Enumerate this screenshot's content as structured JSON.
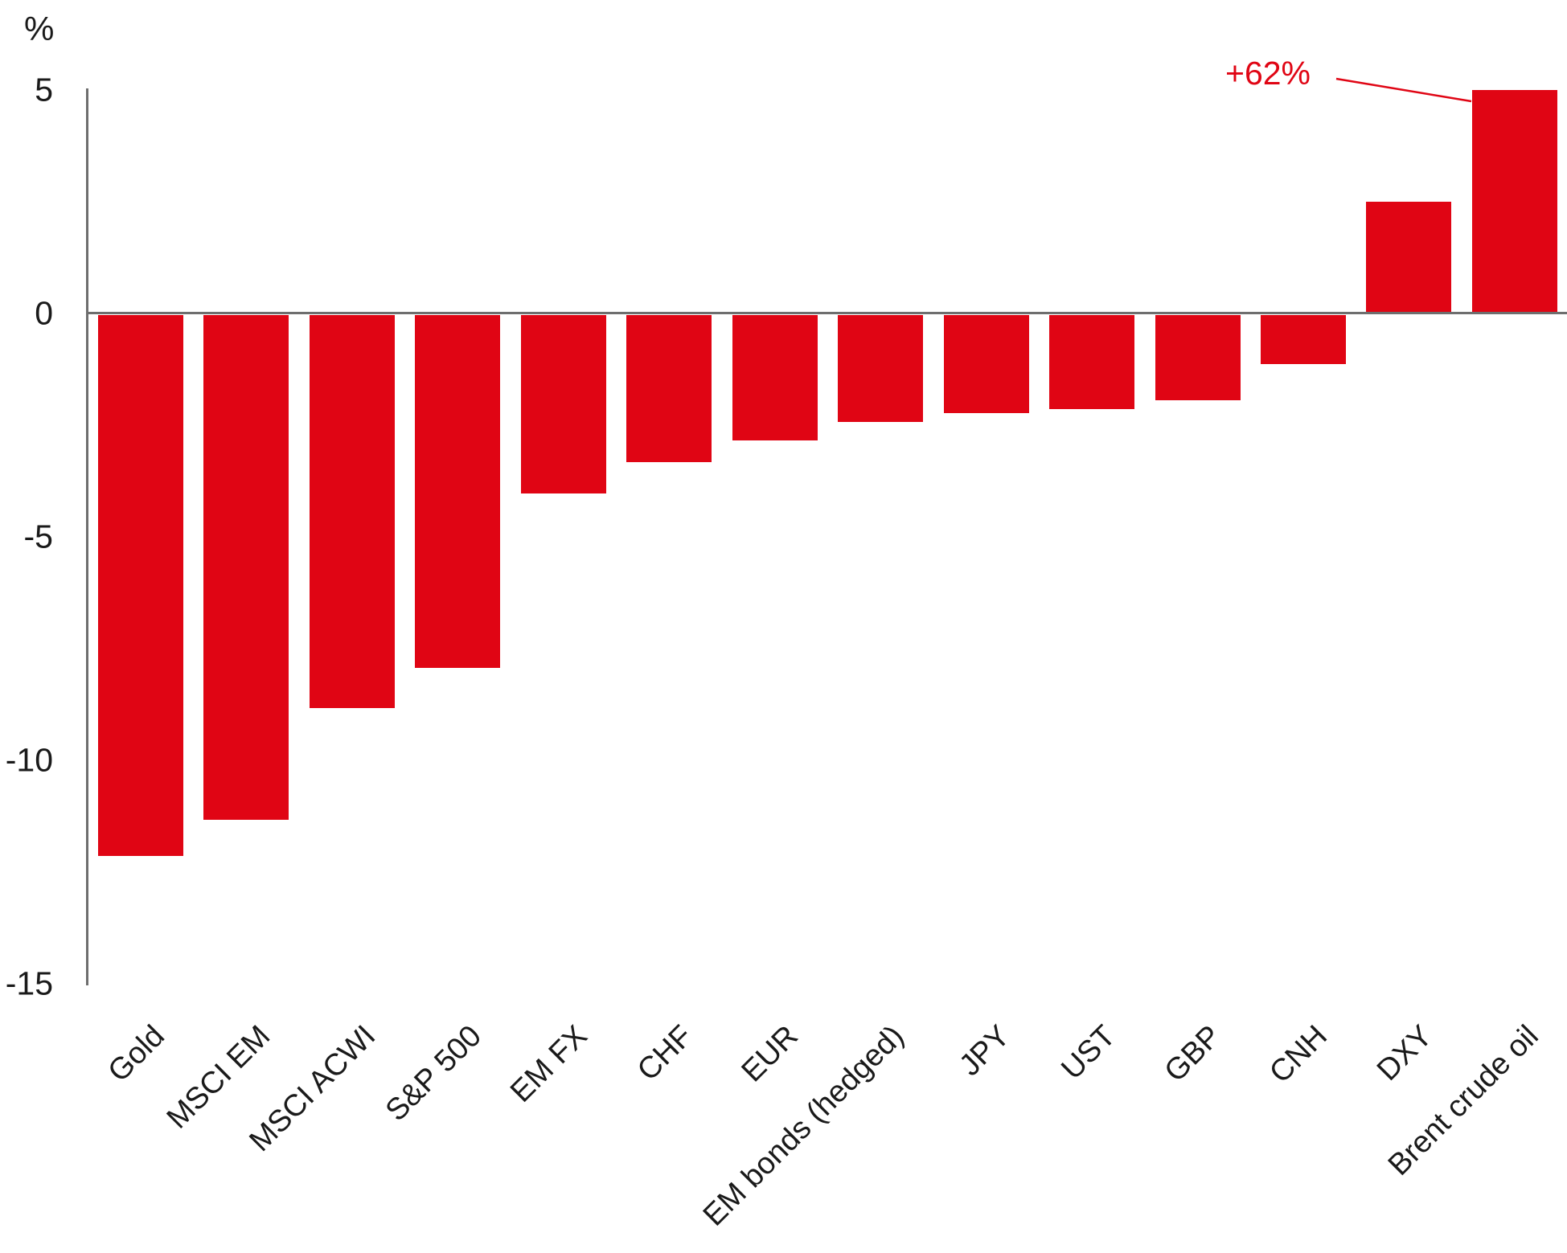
{
  "chart_data": {
    "type": "bar",
    "title": "",
    "unit_label": "%",
    "xlabel": "",
    "ylabel": "%",
    "categories": [
      "Gold",
      "MSCI EM",
      "MSCI ACWI",
      "S&P 500",
      "EM FX",
      "CHF",
      "EUR",
      "EM bonds (hedged)",
      "JPY",
      "UST",
      "GBP",
      "CNH",
      "DXY",
      "Brent crude oil"
    ],
    "values": [
      -12.1,
      -11.3,
      -8.8,
      -7.9,
      -4.0,
      -3.3,
      -2.8,
      -2.4,
      -2.2,
      -2.1,
      -1.9,
      -1.1,
      2.5,
      5.0
    ],
    "yticks": [
      5,
      0,
      -5,
      -10,
      -15
    ],
    "ylim": [
      -15,
      5
    ],
    "grid": "off",
    "legend": "none",
    "annotation": {
      "label": "+62%",
      "target_category": "Brent crude oil",
      "note": "Brent crude oil bar is clipped at the +5% axis maximum; its actual value is +62%"
    },
    "colors": {
      "bar": "#e00514",
      "axis": "#6e6e6e",
      "text": "#1a1a1a",
      "annotation": "#e00514",
      "background": "#ffffff"
    }
  }
}
